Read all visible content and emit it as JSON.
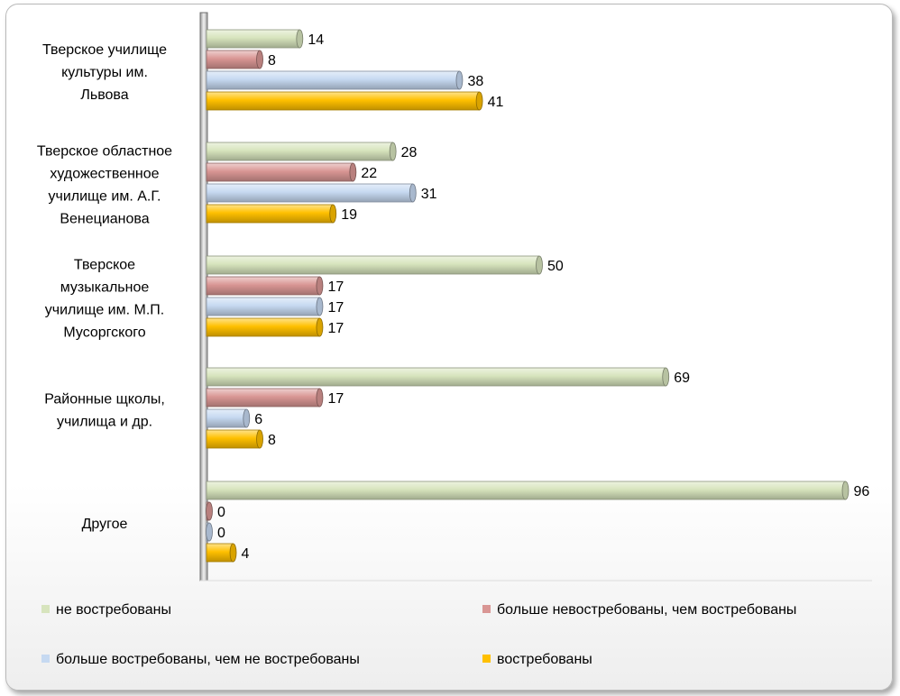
{
  "chart_data": {
    "type": "bar",
    "orientation": "horizontal",
    "categories": [
      [
        "Тверское училище",
        "культуры им.",
        "Львова"
      ],
      [
        "Тверское областное",
        "художественное",
        "училище им. А.Г.",
        "Венецианова"
      ],
      [
        "Тверское",
        "музыкальное",
        "училище им. М.П.",
        "Мусоргского"
      ],
      [
        "Районные щколы,",
        "училища и др."
      ],
      [
        "Другое"
      ]
    ],
    "series": [
      {
        "name": "не востребованы",
        "color": "#d7e4bd",
        "values": [
          14,
          28,
          50,
          69,
          96
        ]
      },
      {
        "name": "больше невостребованы, чем востребованы",
        "color": "#d99694",
        "values": [
          8,
          22,
          17,
          17,
          0
        ]
      },
      {
        "name": "больше востребованы, чем не востребованы",
        "color": "#c6d9f1",
        "values": [
          38,
          31,
          17,
          6,
          0
        ]
      },
      {
        "name": "востребованы",
        "color": "#ffc000",
        "values": [
          41,
          19,
          17,
          8,
          4
        ]
      }
    ],
    "xlim": [
      0,
      100
    ],
    "grid": false,
    "legend_position": "bottom",
    "data_labels": true
  }
}
